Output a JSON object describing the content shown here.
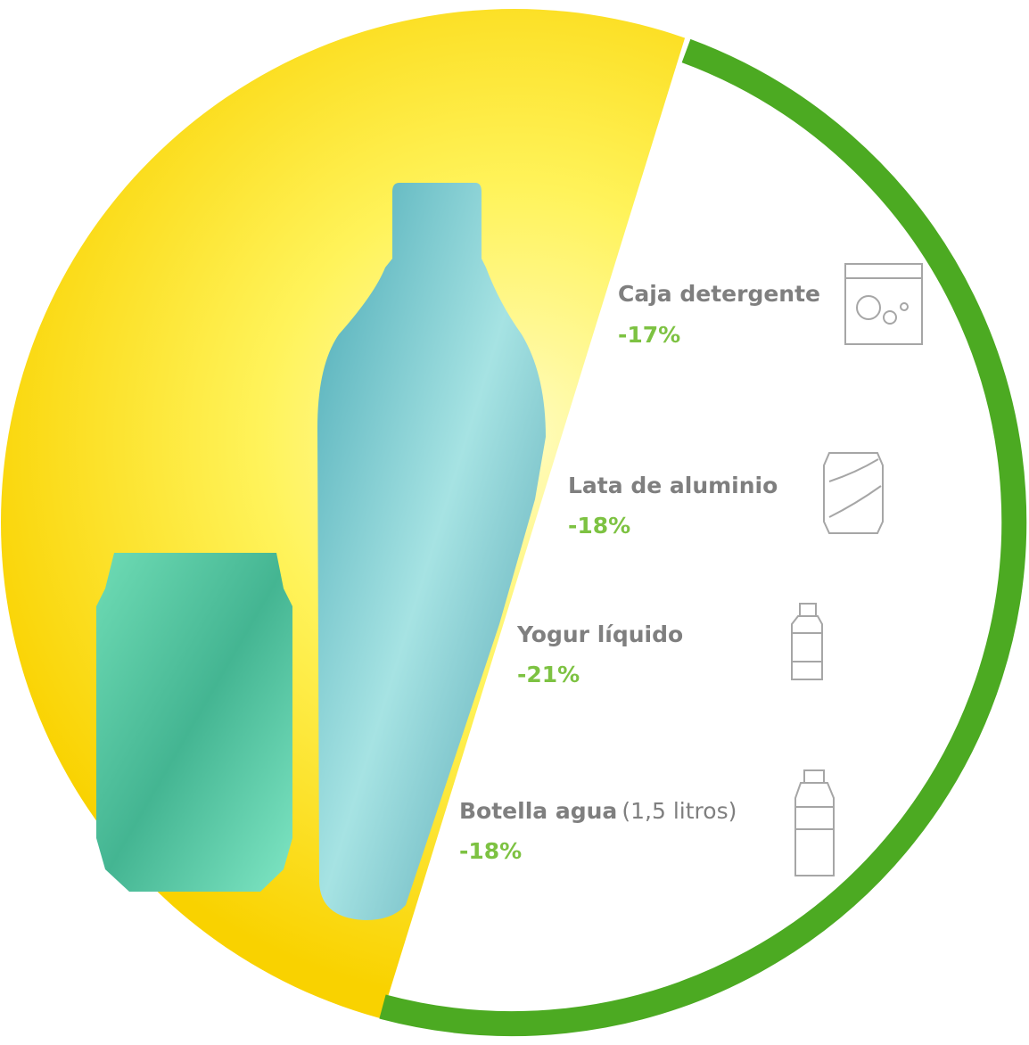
{
  "items": [
    {
      "name": "Caja detergente",
      "change": "-17%"
    },
    {
      "name": "Lata de aluminio",
      "change": "-18%"
    },
    {
      "name": "Yogur líquido",
      "change": "-21%"
    },
    {
      "name": "Botella agua",
      "note": "(1,5 litros)",
      "change": "-18%"
    }
  ]
}
